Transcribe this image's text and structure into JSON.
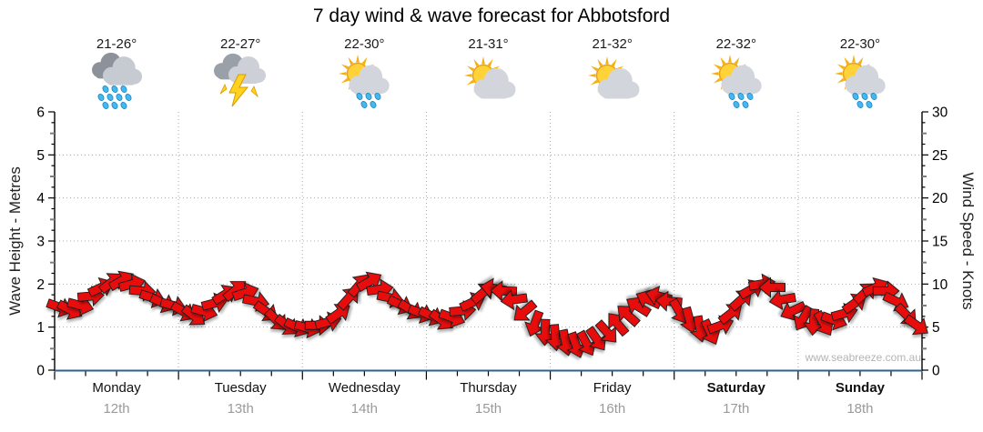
{
  "title": "7 day wind & wave forecast for Abbotsford",
  "watermark": "www.seabreeze.com.au",
  "days": [
    {
      "name": "Monday",
      "date": "12th",
      "temp": "21-26°",
      "icon": "rain-heavy",
      "weekend": false
    },
    {
      "name": "Tuesday",
      "date": "13th",
      "temp": "22-27°",
      "icon": "storm",
      "weekend": false
    },
    {
      "name": "Wednesday",
      "date": "14th",
      "temp": "22-30°",
      "icon": "sun-rain",
      "weekend": false
    },
    {
      "name": "Thursday",
      "date": "15th",
      "temp": "21-31°",
      "icon": "sun-cloud",
      "weekend": false
    },
    {
      "name": "Friday",
      "date": "16th",
      "temp": "21-32°",
      "icon": "sun-cloud",
      "weekend": false
    },
    {
      "name": "Saturday",
      "date": "17th",
      "temp": "22-32°",
      "icon": "sun-rain",
      "weekend": true
    },
    {
      "name": "Sunday",
      "date": "18th",
      "temp": "22-30°",
      "icon": "sun-rain",
      "weekend": true
    }
  ],
  "axes": {
    "left": {
      "label": "Wave Height - Metres",
      "ticks": [
        0,
        1,
        2,
        3,
        4,
        5,
        6
      ],
      "max": 6
    },
    "right": {
      "label": "Wind Speed - Knots",
      "ticks": [
        0,
        5,
        10,
        15,
        20,
        25,
        30
      ],
      "max": 30
    }
  },
  "colors": {
    "arrow": "#e8100c",
    "arrow_stroke": "#1a1a1a",
    "grid": "#aaaaaa",
    "axis": "#000000",
    "bottom_axis": "#2e6091",
    "date_text": "#9a9a9a",
    "watermark": "#b4b4b4"
  },
  "chart_data": {
    "type": "scatter",
    "subtype": "wind-direction-arrow-series",
    "title": "7 day wind & wave forecast for Abbotsford",
    "x_categories": [
      "Monday 12th",
      "Tuesday 13th",
      "Wednesday 14th",
      "Thursday 15th",
      "Friday 16th",
      "Saturday 17th",
      "Sunday 18th"
    ],
    "points_per_day": 12,
    "interval_hours": 2,
    "y_left_label": "Wave Height - Metres",
    "y_left_range": [
      0,
      6
    ],
    "y_right_label": "Wind Speed - Knots",
    "y_right_range": [
      0,
      30
    ],
    "grid": true,
    "legend": "none",
    "temps_by_day": [
      "21-26°",
      "22-27°",
      "22-30°",
      "21-31°",
      "21-32°",
      "22-32°",
      "22-30°"
    ],
    "weather_by_day": [
      "heavy rain",
      "thunderstorm",
      "sun with showers",
      "partly cloudy",
      "partly cloudy",
      "sun with showers",
      "sun with showers"
    ],
    "wind_knots": [
      7.3,
      7.0,
      7.5,
      8.6,
      9.6,
      10.2,
      10.4,
      10.0,
      9.2,
      8.4,
      7.8,
      7.5,
      6.8,
      6.3,
      6.8,
      7.8,
      8.8,
      9.3,
      9.0,
      8.0,
      6.8,
      5.8,
      5.2,
      5.0,
      4.9,
      5.2,
      5.6,
      6.6,
      8.4,
      9.9,
      10.3,
      9.4,
      8.4,
      7.6,
      7.0,
      6.6,
      6.3,
      5.8,
      6.1,
      6.9,
      7.9,
      9.0,
      9.5,
      9.2,
      8.2,
      6.8,
      5.4,
      4.4,
      3.8,
      3.2,
      2.9,
      3.1,
      3.6,
      4.4,
      5.4,
      6.4,
      7.4,
      8.2,
      8.6,
      8.0,
      6.8,
      5.8,
      4.8,
      4.4,
      5.2,
      6.6,
      8.2,
      9.4,
      10.0,
      9.6,
      8.2,
      6.9,
      6.0,
      5.6,
      5.4,
      5.8,
      6.6,
      7.8,
      9.0,
      9.6,
      9.2,
      8.0,
      6.4,
      5.2
    ],
    "wind_dir_deg_cw_from_east": [
      20,
      28,
      15,
      -5,
      -25,
      -38,
      -30,
      -15,
      5,
      18,
      25,
      15,
      30,
      38,
      15,
      -15,
      -32,
      -40,
      -18,
      12,
      35,
      45,
      38,
      25,
      15,
      0,
      -15,
      -35,
      -48,
      -50,
      -30,
      -8,
      12,
      25,
      32,
      22,
      25,
      35,
      20,
      -5,
      -25,
      -40,
      190,
      182,
      172,
      140,
      110,
      92,
      85,
      78,
      70,
      62,
      55,
      48,
      230,
      222,
      212,
      205,
      195,
      185,
      60,
      75,
      80,
      65,
      -20,
      -38,
      -42,
      -30,
      -10,
      180,
      170,
      155,
      120,
      95,
      60,
      20,
      -15,
      -35,
      -42,
      -25,
      0,
      25,
      45,
      35
    ]
  }
}
